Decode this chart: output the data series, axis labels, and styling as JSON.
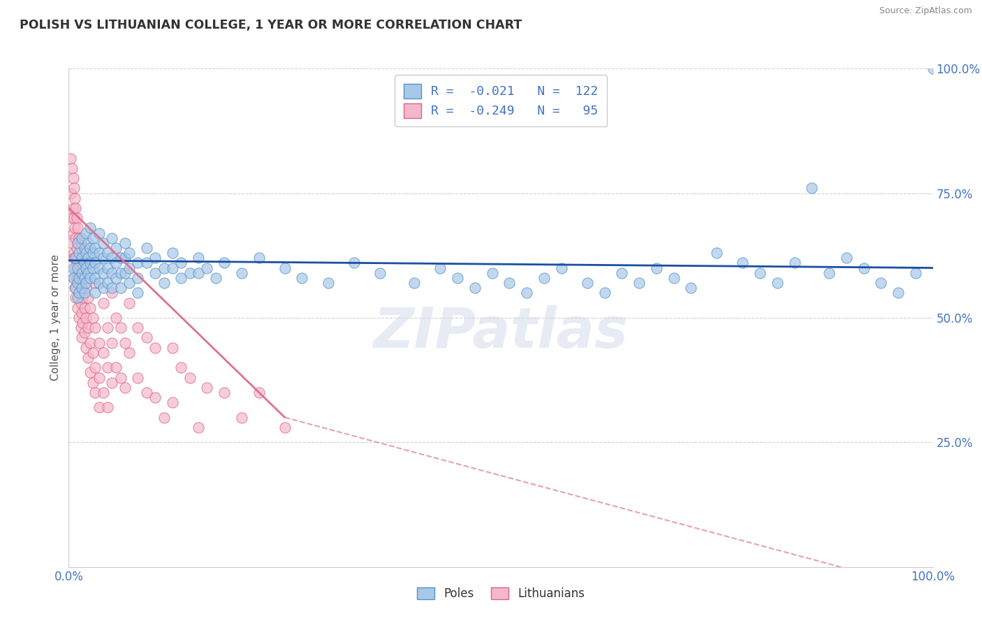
{
  "title": "POLISH VS LITHUANIAN COLLEGE, 1 YEAR OR MORE CORRELATION CHART",
  "source_text": "Source: ZipAtlas.com",
  "ylabel": "College, 1 year or more",
  "xmin": 0.0,
  "xmax": 1.0,
  "ymin": 0.0,
  "ymax": 1.0,
  "poles_color": "#a8c8e8",
  "poles_edge_color": "#5590c8",
  "lithuanians_color": "#f4b8cc",
  "lithuanians_edge_color": "#e06080",
  "poles_line_color": "#1a4fa0",
  "lithuanians_line_color": "#e07090",
  "lithuanians_dashed_color": "#e8a0b0",
  "R_poles": -0.021,
  "N_poles": 122,
  "R_lithuanians": -0.249,
  "N_lithuanians": 95,
  "poles_scatter": [
    [
      0.005,
      0.6
    ],
    [
      0.005,
      0.58
    ],
    [
      0.008,
      0.62
    ],
    [
      0.008,
      0.56
    ],
    [
      0.01,
      0.65
    ],
    [
      0.01,
      0.6
    ],
    [
      0.01,
      0.57
    ],
    [
      0.01,
      0.54
    ],
    [
      0.012,
      0.63
    ],
    [
      0.012,
      0.58
    ],
    [
      0.012,
      0.55
    ],
    [
      0.015,
      0.66
    ],
    [
      0.015,
      0.62
    ],
    [
      0.015,
      0.59
    ],
    [
      0.015,
      0.56
    ],
    [
      0.018,
      0.64
    ],
    [
      0.018,
      0.61
    ],
    [
      0.018,
      0.58
    ],
    [
      0.018,
      0.55
    ],
    [
      0.02,
      0.67
    ],
    [
      0.02,
      0.63
    ],
    [
      0.02,
      0.6
    ],
    [
      0.02,
      0.57
    ],
    [
      0.022,
      0.65
    ],
    [
      0.022,
      0.62
    ],
    [
      0.022,
      0.59
    ],
    [
      0.025,
      0.68
    ],
    [
      0.025,
      0.64
    ],
    [
      0.025,
      0.61
    ],
    [
      0.025,
      0.58
    ],
    [
      0.028,
      0.66
    ],
    [
      0.028,
      0.63
    ],
    [
      0.028,
      0.6
    ],
    [
      0.03,
      0.64
    ],
    [
      0.03,
      0.61
    ],
    [
      0.03,
      0.58
    ],
    [
      0.03,
      0.55
    ],
    [
      0.035,
      0.67
    ],
    [
      0.035,
      0.63
    ],
    [
      0.035,
      0.6
    ],
    [
      0.035,
      0.57
    ],
    [
      0.04,
      0.65
    ],
    [
      0.04,
      0.62
    ],
    [
      0.04,
      0.59
    ],
    [
      0.04,
      0.56
    ],
    [
      0.045,
      0.63
    ],
    [
      0.045,
      0.6
    ],
    [
      0.045,
      0.57
    ],
    [
      0.05,
      0.66
    ],
    [
      0.05,
      0.62
    ],
    [
      0.05,
      0.59
    ],
    [
      0.05,
      0.56
    ],
    [
      0.055,
      0.64
    ],
    [
      0.055,
      0.61
    ],
    [
      0.055,
      0.58
    ],
    [
      0.06,
      0.62
    ],
    [
      0.06,
      0.59
    ],
    [
      0.06,
      0.56
    ],
    [
      0.065,
      0.65
    ],
    [
      0.065,
      0.62
    ],
    [
      0.065,
      0.59
    ],
    [
      0.07,
      0.63
    ],
    [
      0.07,
      0.6
    ],
    [
      0.07,
      0.57
    ],
    [
      0.08,
      0.61
    ],
    [
      0.08,
      0.58
    ],
    [
      0.08,
      0.55
    ],
    [
      0.09,
      0.64
    ],
    [
      0.09,
      0.61
    ],
    [
      0.1,
      0.62
    ],
    [
      0.1,
      0.59
    ],
    [
      0.11,
      0.6
    ],
    [
      0.11,
      0.57
    ],
    [
      0.12,
      0.63
    ],
    [
      0.12,
      0.6
    ],
    [
      0.13,
      0.61
    ],
    [
      0.13,
      0.58
    ],
    [
      0.14,
      0.59
    ],
    [
      0.15,
      0.62
    ],
    [
      0.15,
      0.59
    ],
    [
      0.16,
      0.6
    ],
    [
      0.17,
      0.58
    ],
    [
      0.18,
      0.61
    ],
    [
      0.2,
      0.59
    ],
    [
      0.22,
      0.62
    ],
    [
      0.25,
      0.6
    ],
    [
      0.27,
      0.58
    ],
    [
      0.3,
      0.57
    ],
    [
      0.33,
      0.61
    ],
    [
      0.36,
      0.59
    ],
    [
      0.4,
      0.57
    ],
    [
      0.43,
      0.6
    ],
    [
      0.45,
      0.58
    ],
    [
      0.47,
      0.56
    ],
    [
      0.49,
      0.59
    ],
    [
      0.51,
      0.57
    ],
    [
      0.53,
      0.55
    ],
    [
      0.55,
      0.58
    ],
    [
      0.57,
      0.6
    ],
    [
      0.6,
      0.57
    ],
    [
      0.62,
      0.55
    ],
    [
      0.64,
      0.59
    ],
    [
      0.66,
      0.57
    ],
    [
      0.68,
      0.6
    ],
    [
      0.7,
      0.58
    ],
    [
      0.72,
      0.56
    ],
    [
      0.75,
      0.63
    ],
    [
      0.78,
      0.61
    ],
    [
      0.8,
      0.59
    ],
    [
      0.82,
      0.57
    ],
    [
      0.84,
      0.61
    ],
    [
      0.86,
      0.76
    ],
    [
      0.88,
      0.59
    ],
    [
      0.9,
      0.62
    ],
    [
      0.92,
      0.6
    ],
    [
      0.94,
      0.57
    ],
    [
      0.96,
      0.55
    ],
    [
      0.98,
      0.59
    ],
    [
      1.0,
      1.0
    ]
  ],
  "lithuanians_scatter": [
    [
      0.002,
      0.82
    ],
    [
      0.002,
      0.75
    ],
    [
      0.004,
      0.8
    ],
    [
      0.004,
      0.7
    ],
    [
      0.004,
      0.65
    ],
    [
      0.005,
      0.78
    ],
    [
      0.005,
      0.72
    ],
    [
      0.005,
      0.67
    ],
    [
      0.005,
      0.62
    ],
    [
      0.006,
      0.76
    ],
    [
      0.006,
      0.7
    ],
    [
      0.006,
      0.63
    ],
    [
      0.006,
      0.58
    ],
    [
      0.007,
      0.74
    ],
    [
      0.007,
      0.68
    ],
    [
      0.007,
      0.62
    ],
    [
      0.007,
      0.56
    ],
    [
      0.008,
      0.72
    ],
    [
      0.008,
      0.66
    ],
    [
      0.008,
      0.6
    ],
    [
      0.008,
      0.54
    ],
    [
      0.009,
      0.7
    ],
    [
      0.009,
      0.64
    ],
    [
      0.009,
      0.58
    ],
    [
      0.01,
      0.68
    ],
    [
      0.01,
      0.62
    ],
    [
      0.01,
      0.57
    ],
    [
      0.01,
      0.52
    ],
    [
      0.012,
      0.66
    ],
    [
      0.012,
      0.6
    ],
    [
      0.012,
      0.55
    ],
    [
      0.012,
      0.5
    ],
    [
      0.014,
      0.64
    ],
    [
      0.014,
      0.58
    ],
    [
      0.014,
      0.53
    ],
    [
      0.014,
      0.48
    ],
    [
      0.015,
      0.62
    ],
    [
      0.015,
      0.56
    ],
    [
      0.015,
      0.51
    ],
    [
      0.015,
      0.46
    ],
    [
      0.016,
      0.6
    ],
    [
      0.016,
      0.54
    ],
    [
      0.016,
      0.49
    ],
    [
      0.018,
      0.58
    ],
    [
      0.018,
      0.52
    ],
    [
      0.018,
      0.47
    ],
    [
      0.02,
      0.56
    ],
    [
      0.02,
      0.5
    ],
    [
      0.02,
      0.44
    ],
    [
      0.022,
      0.54
    ],
    [
      0.022,
      0.48
    ],
    [
      0.022,
      0.42
    ],
    [
      0.025,
      0.52
    ],
    [
      0.025,
      0.45
    ],
    [
      0.025,
      0.39
    ],
    [
      0.028,
      0.5
    ],
    [
      0.028,
      0.43
    ],
    [
      0.028,
      0.37
    ],
    [
      0.03,
      0.57
    ],
    [
      0.03,
      0.48
    ],
    [
      0.03,
      0.4
    ],
    [
      0.03,
      0.35
    ],
    [
      0.035,
      0.45
    ],
    [
      0.035,
      0.38
    ],
    [
      0.035,
      0.32
    ],
    [
      0.04,
      0.53
    ],
    [
      0.04,
      0.43
    ],
    [
      0.04,
      0.35
    ],
    [
      0.045,
      0.48
    ],
    [
      0.045,
      0.4
    ],
    [
      0.045,
      0.32
    ],
    [
      0.05,
      0.55
    ],
    [
      0.05,
      0.45
    ],
    [
      0.05,
      0.37
    ],
    [
      0.055,
      0.5
    ],
    [
      0.055,
      0.4
    ],
    [
      0.06,
      0.48
    ],
    [
      0.06,
      0.38
    ],
    [
      0.065,
      0.45
    ],
    [
      0.065,
      0.36
    ],
    [
      0.07,
      0.53
    ],
    [
      0.07,
      0.43
    ],
    [
      0.08,
      0.48
    ],
    [
      0.08,
      0.38
    ],
    [
      0.09,
      0.46
    ],
    [
      0.09,
      0.35
    ],
    [
      0.1,
      0.44
    ],
    [
      0.1,
      0.34
    ],
    [
      0.11,
      0.3
    ],
    [
      0.12,
      0.44
    ],
    [
      0.12,
      0.33
    ],
    [
      0.13,
      0.4
    ],
    [
      0.14,
      0.38
    ],
    [
      0.15,
      0.28
    ],
    [
      0.16,
      0.36
    ],
    [
      0.18,
      0.35
    ],
    [
      0.2,
      0.3
    ],
    [
      0.22,
      0.35
    ],
    [
      0.25,
      0.28
    ]
  ]
}
